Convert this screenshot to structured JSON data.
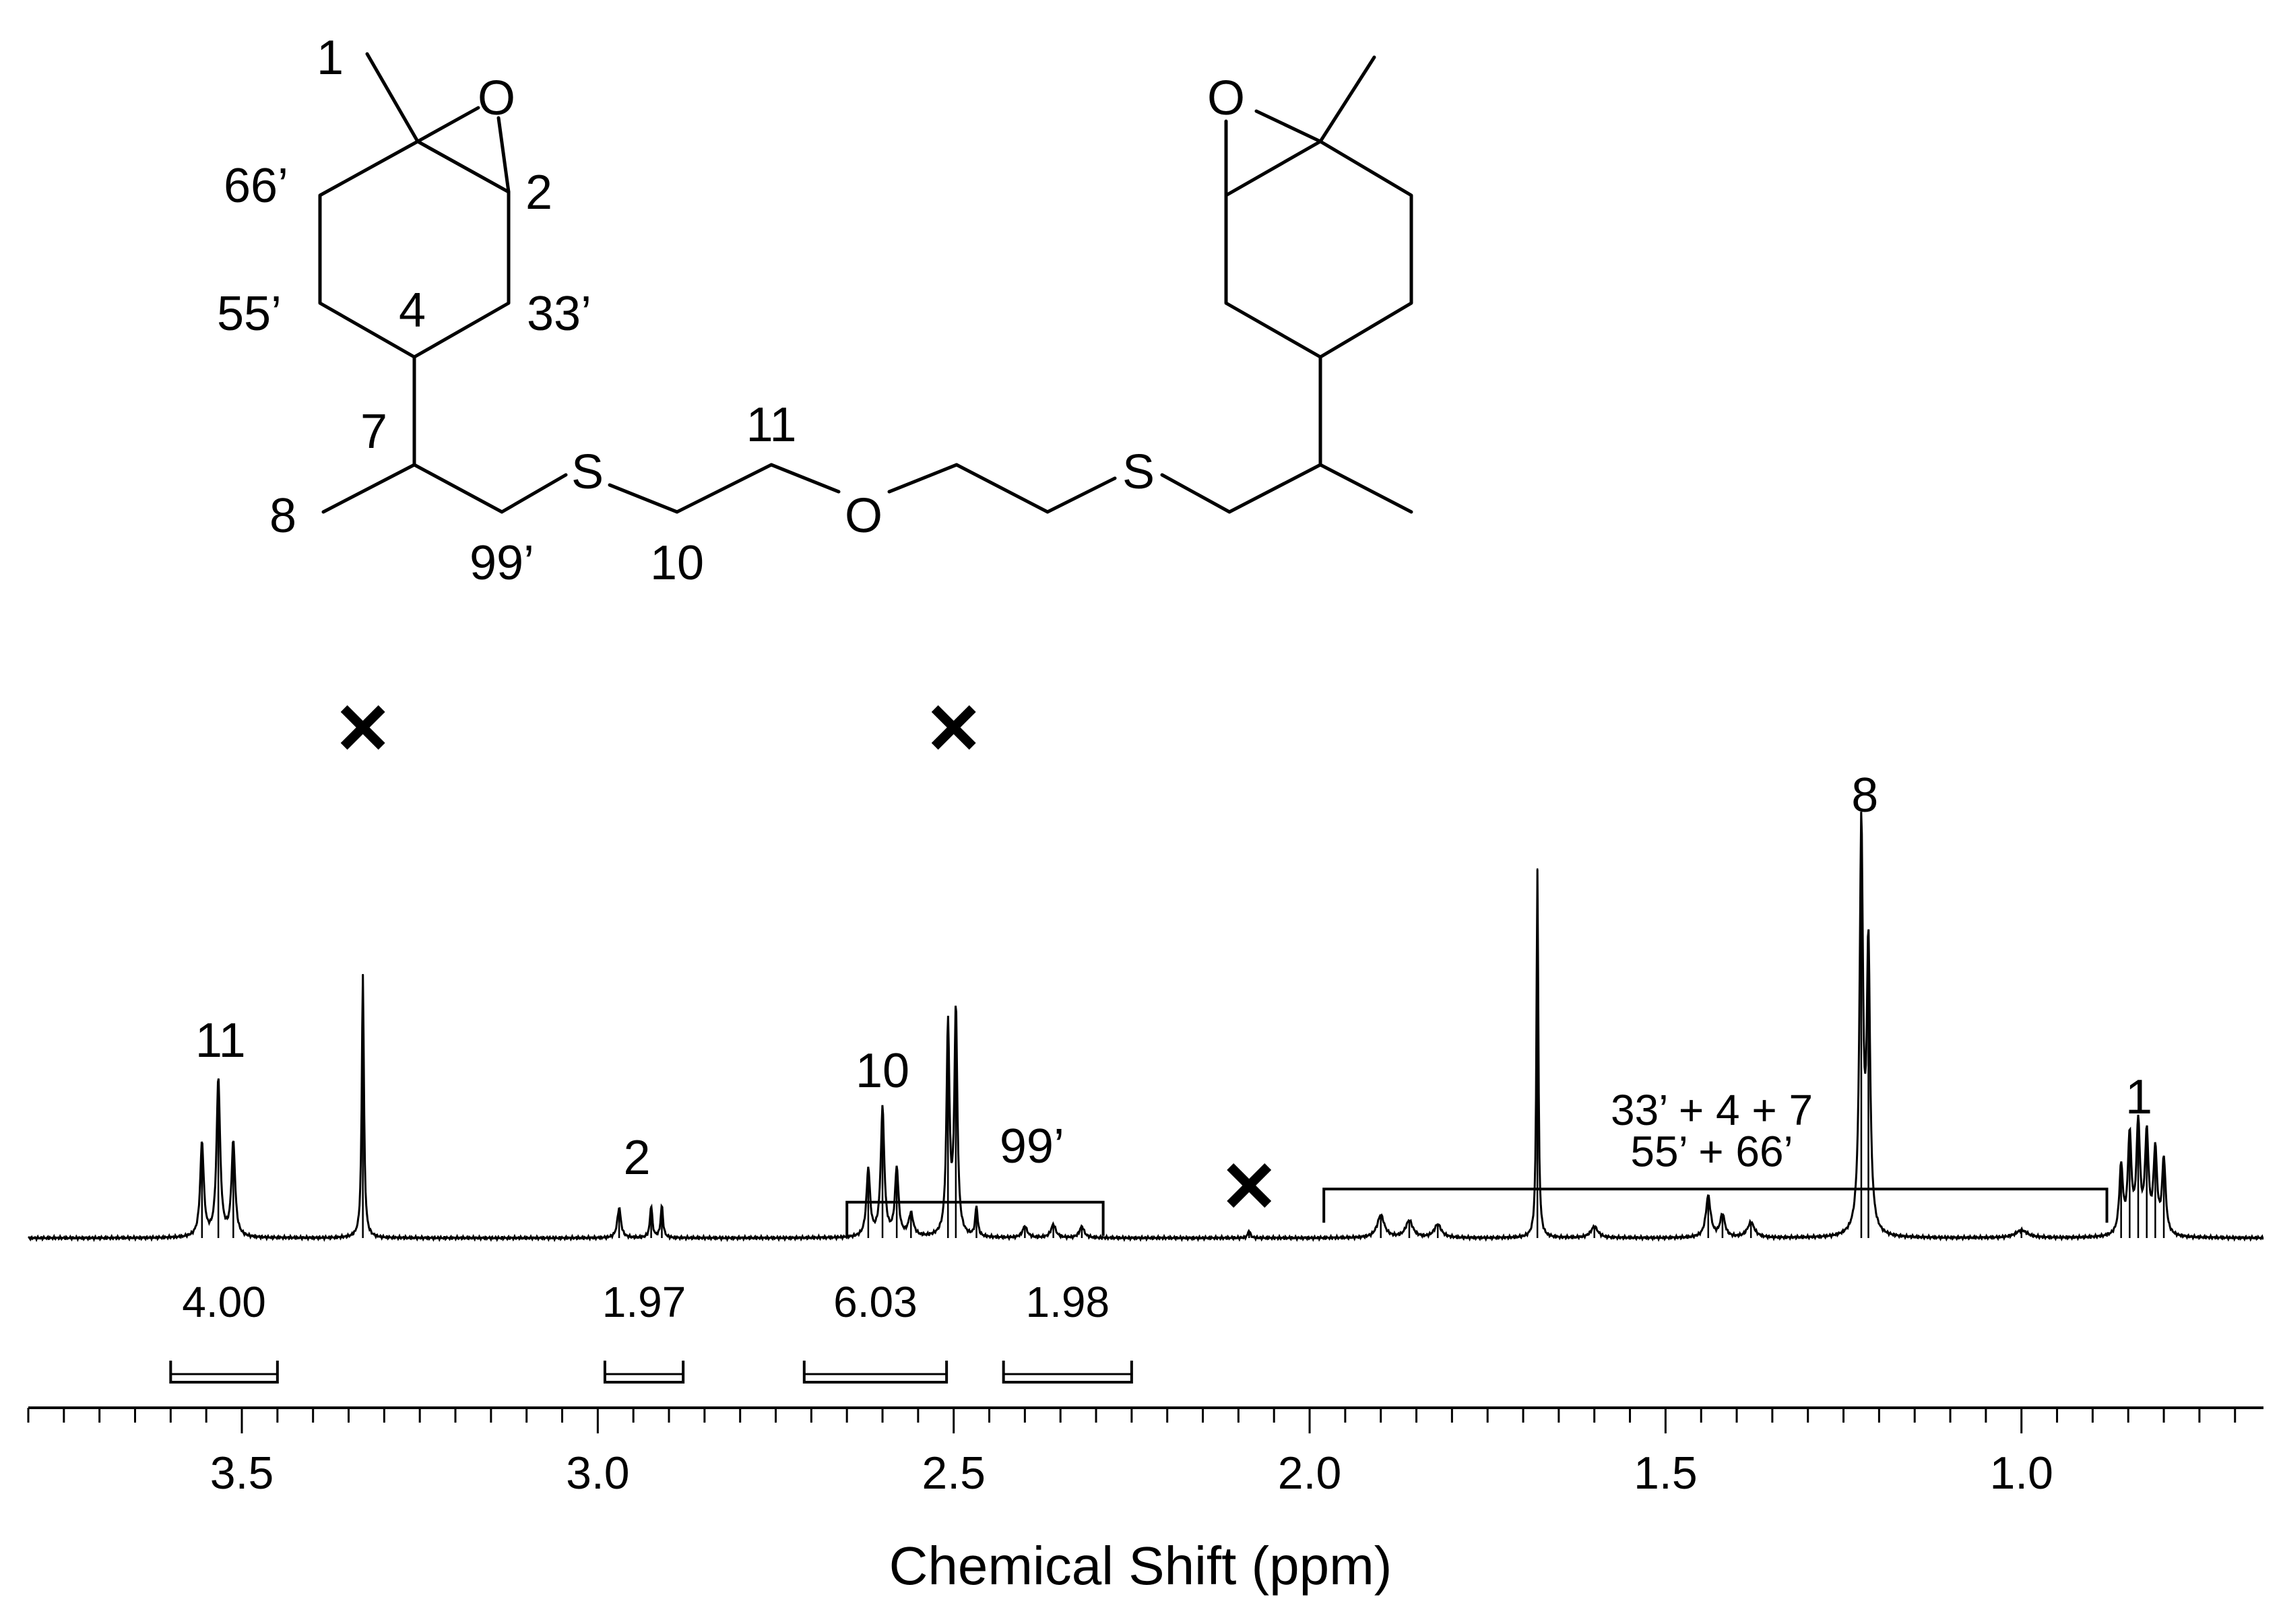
{
  "chart_data": {
    "type": "line",
    "xlabel": "Chemical Shift (ppm)",
    "ylabel": "",
    "x_reversed": true,
    "xlim": [
      3.8,
      0.66
    ],
    "ylim": [
      0,
      1
    ],
    "grid": false,
    "x_ticks": [
      {
        "value": 3.5,
        "label": "3.5"
      },
      {
        "value": 3.0,
        "label": "3.0"
      },
      {
        "value": 2.5,
        "label": "2.5"
      },
      {
        "value": 2.0,
        "label": "2.0"
      },
      {
        "value": 1.5,
        "label": "1.5"
      },
      {
        "value": 1.0,
        "label": "1.0"
      }
    ],
    "minor_tick_step": 0.05,
    "spectrum_peaks": [
      {
        "shift": 3.556,
        "height": 0.25,
        "width": 0.003
      },
      {
        "shift": 3.533,
        "height": 0.42,
        "width": 0.003
      },
      {
        "shift": 3.512,
        "height": 0.25,
        "width": 0.003
      },
      {
        "shift": 3.33,
        "height": 0.7,
        "width": 0.0018
      },
      {
        "shift": 2.97,
        "height": 0.08,
        "width": 0.003
      },
      {
        "shift": 2.925,
        "height": 0.085,
        "width": 0.002
      },
      {
        "shift": 2.91,
        "height": 0.085,
        "width": 0.002
      },
      {
        "shift": 2.62,
        "height": 0.18,
        "width": 0.003
      },
      {
        "shift": 2.6,
        "height": 0.34,
        "width": 0.003
      },
      {
        "shift": 2.58,
        "height": 0.18,
        "width": 0.003
      },
      {
        "shift": 2.56,
        "height": 0.06,
        "width": 0.004
      },
      {
        "shift": 2.508,
        "height": 0.56,
        "width": 0.0025
      },
      {
        "shift": 2.497,
        "height": 0.6,
        "width": 0.0025
      },
      {
        "shift": 2.468,
        "height": 0.08,
        "width": 0.002
      },
      {
        "shift": 2.4,
        "height": 0.03,
        "width": 0.004
      },
      {
        "shift": 2.36,
        "height": 0.035,
        "width": 0.004
      },
      {
        "shift": 2.32,
        "height": 0.03,
        "width": 0.004
      },
      {
        "shift": 2.085,
        "height": 0.02,
        "width": 0.002
      },
      {
        "shift": 1.9,
        "height": 0.06,
        "width": 0.006
      },
      {
        "shift": 1.86,
        "height": 0.045,
        "width": 0.006
      },
      {
        "shift": 1.82,
        "height": 0.035,
        "width": 0.006
      },
      {
        "shift": 1.68,
        "height": 0.98,
        "width": 0.0015
      },
      {
        "shift": 1.6,
        "height": 0.03,
        "width": 0.006
      },
      {
        "shift": 1.44,
        "height": 0.11,
        "width": 0.004
      },
      {
        "shift": 1.42,
        "height": 0.06,
        "width": 0.004
      },
      {
        "shift": 1.38,
        "height": 0.04,
        "width": 0.006
      },
      {
        "shift": 1.225,
        "height": 1.08,
        "width": 0.0028
      },
      {
        "shift": 1.215,
        "height": 0.75,
        "width": 0.0028
      },
      {
        "shift": 1.0,
        "height": 0.02,
        "width": 0.01
      },
      {
        "shift": 0.86,
        "height": 0.18,
        "width": 0.003
      },
      {
        "shift": 0.848,
        "height": 0.26,
        "width": 0.003
      },
      {
        "shift": 0.836,
        "height": 0.29,
        "width": 0.003
      },
      {
        "shift": 0.824,
        "height": 0.26,
        "width": 0.003
      },
      {
        "shift": 0.812,
        "height": 0.22,
        "width": 0.003
      },
      {
        "shift": 0.8,
        "height": 0.2,
        "width": 0.003
      }
    ],
    "solvent_marks": [
      {
        "shift": 3.33
      },
      {
        "shift": 2.5
      },
      {
        "shift": 2.085
      }
    ],
    "peak_labels": [
      {
        "text": "11",
        "shift": 3.53,
        "level": 0.48
      },
      {
        "text": "2",
        "shift": 2.945,
        "level": 0.17
      },
      {
        "text": "10",
        "shift": 2.6,
        "level": 0.4
      },
      {
        "text": "99’",
        "shift": 2.39,
        "level": 0.2
      },
      {
        "text": "8",
        "shift": 1.22,
        "level": 1.13
      },
      {
        "text": "1",
        "shift": 0.835,
        "level": 0.33
      }
    ],
    "group_labels": [
      {
        "text": "33’ + 4 + 7",
        "shift": 1.435,
        "level": 0.3
      },
      {
        "text": "55’ + 66’",
        "shift": 1.435,
        "level": 0.19
      }
    ],
    "group_brackets": [
      {
        "from": 2.65,
        "to": 2.29,
        "level": 0.095
      },
      {
        "from": 1.98,
        "to": 0.88,
        "level": 0.13
      }
    ],
    "integrals": [
      {
        "label": "4.00",
        "from": 3.6,
        "to": 3.45
      },
      {
        "label": "1.97",
        "from": 2.99,
        "to": 2.88
      },
      {
        "label": "6.03",
        "from": 2.71,
        "to": 2.51
      },
      {
        "label": "1.98",
        "from": 2.43,
        "to": 2.25
      }
    ]
  },
  "structure": {
    "atom_labels": [
      "O",
      "S",
      "O",
      "S",
      "O"
    ],
    "position_labels": [
      "1",
      "66’",
      "2",
      "55’",
      "4",
      "33’",
      "7",
      "11",
      "8",
      "99’",
      "10"
    ]
  }
}
